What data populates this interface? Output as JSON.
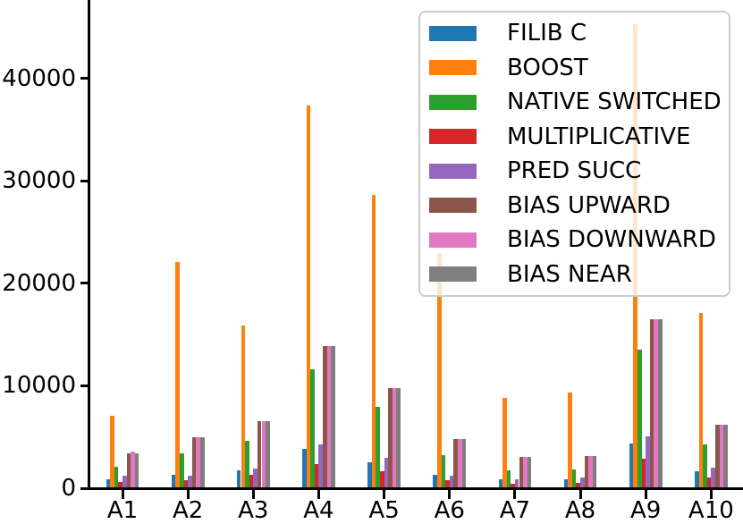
{
  "chart_data": {
    "type": "bar",
    "title": "",
    "xlabel": "",
    "ylabel": "",
    "categories": [
      "A1",
      "A2",
      "A3",
      "A4",
      "A5",
      "A6",
      "A7",
      "A8",
      "A9",
      "A10"
    ],
    "series": [
      {
        "name": "FILIB C",
        "color": "#1f77b4",
        "values": [
          870,
          1340,
          1750,
          3870,
          2500,
          1310,
          850,
          900,
          4340,
          1630
        ]
      },
      {
        "name": "BOOST",
        "color": "#ff7f0e",
        "values": [
          7100,
          22100,
          15900,
          37350,
          28600,
          23000,
          8850,
          9370,
          45300,
          17100
        ]
      },
      {
        "name": "NATIVE SWITCHED",
        "color": "#2ca02c",
        "values": [
          2100,
          3430,
          4650,
          11600,
          7950,
          3200,
          1720,
          1800,
          13500,
          4250
        ]
      },
      {
        "name": "MULTIPLICATIVE",
        "color": "#d62728",
        "values": [
          650,
          815,
          1310,
          2360,
          1640,
          760,
          440,
          520,
          2880,
          1070
        ]
      },
      {
        "name": "PRED SUCC",
        "color": "#9467bd",
        "values": [
          1200,
          1250,
          1920,
          4310,
          2930,
          1250,
          900,
          1050,
          5070,
          2010
        ]
      },
      {
        "name": "BIAS UPWARD",
        "color": "#8c564b",
        "values": [
          3430,
          4950,
          6580,
          13860,
          9780,
          4780,
          3030,
          3170,
          16480,
          6170
        ]
      },
      {
        "name": "BIAS DOWNWARD",
        "color": "#e377c2",
        "values": [
          3550,
          4950,
          6580,
          13860,
          9780,
          4780,
          3030,
          3170,
          16480,
          6170
        ]
      },
      {
        "name": "BIAS NEAR",
        "color": "#7f7f7f",
        "values": [
          3430,
          4950,
          6580,
          13900,
          9780,
          4780,
          3030,
          3170,
          16480,
          6170
        ]
      }
    ],
    "yticks": [
      0,
      10000,
      20000,
      30000,
      40000
    ],
    "ytick_labels": [
      "0",
      "10000",
      "20000",
      "30000",
      "40000"
    ],
    "ylim": [
      0,
      47700
    ],
    "grid": false,
    "legend_position": "upper right"
  }
}
